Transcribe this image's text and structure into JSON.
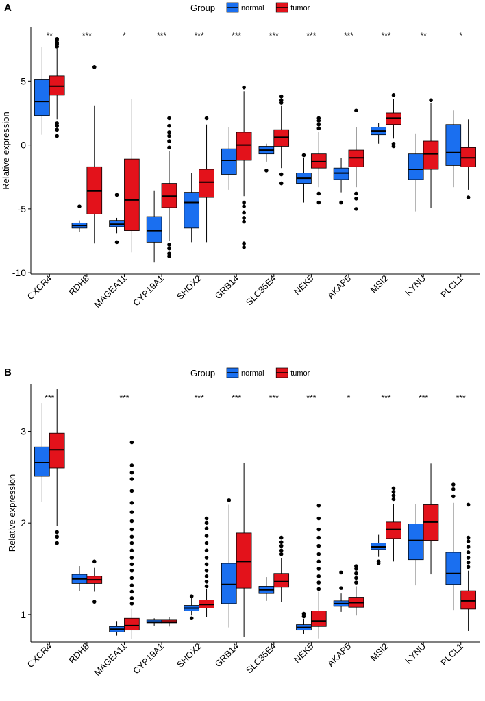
{
  "chart_data": [
    {
      "type": "boxplot",
      "panel_label": "A",
      "legend": {
        "title": "Group",
        "entries": [
          {
            "name": "normal",
            "color": "#1a6ff0"
          },
          {
            "name": "tumor",
            "color": "#e3121b"
          }
        ],
        "placement": "top"
      },
      "xlabel": "",
      "ylabel": "Relative  expression",
      "ylim": [
        -10.1,
        9.2
      ],
      "yticks": [
        -10,
        -5,
        0,
        5
      ],
      "ytick_labels": [
        "-10",
        "-5",
        "0",
        "5"
      ],
      "categories": [
        "CXCR4",
        "RDH8",
        "MAGEA11",
        "CYP19A1",
        "SHOX2",
        "GRB14",
        "SLC35E4",
        "NEK5",
        "AKAP5",
        "MSI2",
        "KYNU",
        "PLCL1"
      ],
      "significance": [
        "**",
        "***",
        "*",
        "***",
        "***",
        "***",
        "***",
        "***",
        "***",
        "***",
        "**",
        "*"
      ],
      "series": [
        {
          "name": "normal",
          "boxes": [
            {
              "q1": 2.3,
              "median": 3.4,
              "q3": 5.1,
              "lo": 0.8,
              "hi": 7.7,
              "outliers": []
            },
            {
              "q1": -6.5,
              "median": -6.3,
              "q3": -6.1,
              "lo": -6.8,
              "hi": -5.9,
              "outliers": [
                -4.8
              ]
            },
            {
              "q1": -6.4,
              "median": -6.2,
              "q3": -5.9,
              "lo": -6.9,
              "hi": -5.7,
              "outliers": [
                -3.9,
                -7.6
              ]
            },
            {
              "q1": -7.6,
              "median": -6.7,
              "q3": -5.6,
              "lo": -9.2,
              "hi": -3.6,
              "outliers": []
            },
            {
              "q1": -6.5,
              "median": -4.5,
              "q3": -3.7,
              "lo": -7.6,
              "hi": -2.2,
              "outliers": []
            },
            {
              "q1": -2.3,
              "median": -1.2,
              "q3": -0.3,
              "lo": -3.5,
              "hi": 1.4,
              "outliers": []
            },
            {
              "q1": -0.7,
              "median": -0.4,
              "q3": -0.1,
              "lo": -1.3,
              "hi": 0.1,
              "outliers": [
                -2.0
              ]
            },
            {
              "q1": -3.0,
              "median": -2.6,
              "q3": -2.2,
              "lo": -4.5,
              "hi": -1.0,
              "outliers": [
                -0.8
              ]
            },
            {
              "q1": -2.7,
              "median": -2.2,
              "q3": -1.8,
              "lo": -3.7,
              "hi": -1.0,
              "outliers": [
                -4.5
              ]
            },
            {
              "q1": 0.8,
              "median": 1.1,
              "q3": 1.4,
              "lo": 0.1,
              "hi": 1.7,
              "outliers": []
            },
            {
              "q1": -2.7,
              "median": -1.9,
              "q3": -0.7,
              "lo": -5.2,
              "hi": 0.9,
              "outliers": []
            },
            {
              "q1": -1.6,
              "median": -0.6,
              "q3": 1.6,
              "lo": -3.3,
              "hi": 2.7,
              "outliers": []
            }
          ]
        },
        {
          "name": "tumor",
          "boxes": [
            {
              "q1": 3.9,
              "median": 4.6,
              "q3": 5.4,
              "lo": 2.0,
              "hi": 7.5,
              "outliers": [
                7.7,
                7.9,
                8.0,
                8.2,
                8.3,
                1.7,
                1.5,
                1.2,
                0.7
              ]
            },
            {
              "q1": -5.4,
              "median": -3.6,
              "q3": -1.7,
              "lo": -7.7,
              "hi": 3.1,
              "outliers": [
                6.1
              ]
            },
            {
              "q1": -6.7,
              "median": -4.3,
              "q3": -1.1,
              "lo": -8.4,
              "hi": 3.6,
              "outliers": []
            },
            {
              "q1": -4.9,
              "median": -4.0,
              "q3": -3.0,
              "lo": -7.5,
              "hi": -0.5,
              "outliers": [
                2.1,
                1.5,
                1.0,
                0.7,
                0.3,
                -0.2,
                -7.8,
                -8.1,
                -8.5,
                -8.7
              ]
            },
            {
              "q1": -4.1,
              "median": -2.9,
              "q3": -1.9,
              "lo": -7.6,
              "hi": 1.6,
              "outliers": [
                2.1
              ]
            },
            {
              "q1": -1.2,
              "median": 0.0,
              "q3": 1.0,
              "lo": -4.0,
              "hi": 4.2,
              "outliers": [
                4.5,
                -4.5,
                -4.8,
                -5.3,
                -5.7,
                -6.0,
                -7.7,
                -8.0
              ]
            },
            {
              "q1": -0.1,
              "median": 0.6,
              "q3": 1.2,
              "lo": -1.8,
              "hi": 3.1,
              "outliers": [
                3.3,
                3.5,
                3.8,
                -2.3,
                -3.0
              ]
            },
            {
              "q1": -1.8,
              "median": -1.3,
              "q3": -0.7,
              "lo": -3.3,
              "hi": 1.0,
              "outliers": [
                1.3,
                1.6,
                1.9,
                2.1,
                -3.8,
                -4.5
              ]
            },
            {
              "q1": -1.7,
              "median": -1.0,
              "q3": -0.4,
              "lo": -3.3,
              "hi": 1.4,
              "outliers": [
                2.7,
                -3.8,
                -4.2,
                -5.0
              ]
            },
            {
              "q1": 1.6,
              "median": 2.1,
              "q3": 2.5,
              "lo": 0.5,
              "hi": 3.6,
              "outliers": [
                3.9,
                0.1,
                -0.1
              ]
            },
            {
              "q1": -1.9,
              "median": -0.7,
              "q3": 0.3,
              "lo": -4.9,
              "hi": 3.3,
              "outliers": [
                3.5
              ]
            },
            {
              "q1": -1.7,
              "median": -1.0,
              "q3": -0.2,
              "lo": -3.5,
              "hi": 2.0,
              "outliers": [
                -4.1
              ]
            }
          ]
        }
      ]
    },
    {
      "type": "boxplot",
      "panel_label": "B",
      "legend": {
        "title": "Group",
        "entries": [
          {
            "name": "normal",
            "color": "#1a6ff0"
          },
          {
            "name": "tumor",
            "color": "#e3121b"
          }
        ],
        "placement": "top"
      },
      "xlabel": "",
      "ylabel": "Relative expression",
      "ylim": [
        0.7,
        3.52
      ],
      "yticks": [
        1,
        2,
        3
      ],
      "ytick_labels": [
        "1",
        "2",
        "3"
      ],
      "categories": [
        "CXCR4",
        "RDH8",
        "MAGEA11",
        "CYP19A1",
        "SHOX2",
        "GRB14",
        "SLC35E4",
        "NEK5",
        "AKAP5",
        "MSI2",
        "KYNU",
        "PLCL1"
      ],
      "significance": [
        "***",
        "",
        "***",
        "",
        "***",
        "***",
        "***",
        "***",
        "*",
        "***",
        "***",
        "***"
      ],
      "series": [
        {
          "name": "normal",
          "boxes": [
            {
              "q1": 2.51,
              "median": 2.66,
              "q3": 2.83,
              "lo": 2.23,
              "hi": 3.31,
              "outliers": []
            },
            {
              "q1": 1.34,
              "median": 1.39,
              "q3": 1.44,
              "lo": 1.26,
              "hi": 1.53,
              "outliers": []
            },
            {
              "q1": 0.81,
              "median": 0.84,
              "q3": 0.87,
              "lo": 0.77,
              "hi": 0.93,
              "outliers": []
            },
            {
              "q1": 0.91,
              "median": 0.92,
              "q3": 0.94,
              "lo": 0.88,
              "hi": 0.96,
              "outliers": []
            },
            {
              "q1": 1.04,
              "median": 1.07,
              "q3": 1.1,
              "lo": 0.99,
              "hi": 1.18,
              "outliers": [
                0.96,
                1.2
              ]
            },
            {
              "q1": 1.12,
              "median": 1.33,
              "q3": 1.56,
              "lo": 0.86,
              "hi": 2.2,
              "outliers": [
                2.25
              ]
            },
            {
              "q1": 1.23,
              "median": 1.27,
              "q3": 1.31,
              "lo": 1.15,
              "hi": 1.41,
              "outliers": []
            },
            {
              "q1": 0.83,
              "median": 0.86,
              "q3": 0.89,
              "lo": 0.79,
              "hi": 0.95,
              "outliers": [
                0.98,
                1.01
              ]
            },
            {
              "q1": 1.09,
              "median": 1.12,
              "q3": 1.15,
              "lo": 1.03,
              "hi": 1.23,
              "outliers": [
                1.29,
                1.46
              ]
            },
            {
              "q1": 1.71,
              "median": 1.74,
              "q3": 1.78,
              "lo": 1.63,
              "hi": 1.87,
              "outliers": [
                1.56,
                1.58
              ]
            },
            {
              "q1": 1.6,
              "median": 1.81,
              "q3": 1.99,
              "lo": 1.32,
              "hi": 2.21,
              "outliers": []
            },
            {
              "q1": 1.33,
              "median": 1.45,
              "q3": 1.68,
              "lo": 1.05,
              "hi": 2.22,
              "outliers": [
                2.29,
                2.37,
                2.42
              ]
            }
          ]
        },
        {
          "name": "tumor",
          "boxes": [
            {
              "q1": 2.6,
              "median": 2.8,
              "q3": 2.98,
              "lo": 1.97,
              "hi": 3.46,
              "outliers": [
                1.78,
                1.85,
                1.9
              ]
            },
            {
              "q1": 1.34,
              "median": 1.38,
              "q3": 1.42,
              "lo": 1.25,
              "hi": 1.51,
              "outliers": [
                1.14,
                1.58
              ]
            },
            {
              "q1": 0.83,
              "median": 0.88,
              "q3": 0.96,
              "lo": 0.73,
              "hi": 1.06,
              "outliers": [
                1.12,
                1.18,
                1.25,
                1.32,
                1.4,
                1.48,
                1.55,
                1.62,
                1.7,
                1.78,
                1.85,
                1.93,
                2.02,
                2.12,
                2.22,
                2.35,
                2.48,
                2.55,
                2.63,
                2.88
              ]
            },
            {
              "q1": 0.91,
              "median": 0.92,
              "q3": 0.94,
              "lo": 0.87,
              "hi": 0.97,
              "outliers": []
            },
            {
              "q1": 1.07,
              "median": 1.11,
              "q3": 1.16,
              "lo": 0.97,
              "hi": 1.28,
              "outliers": [
                1.31,
                1.36,
                1.42,
                1.48,
                1.55,
                1.62,
                1.7,
                1.78,
                1.86,
                1.94,
                2.0,
                2.05
              ]
            },
            {
              "q1": 1.29,
              "median": 1.58,
              "q3": 1.89,
              "lo": 0.76,
              "hi": 2.66,
              "outliers": []
            },
            {
              "q1": 1.3,
              "median": 1.36,
              "q3": 1.45,
              "lo": 1.14,
              "hi": 1.62,
              "outliers": [
                1.66,
                1.7,
                1.75,
                1.79,
                1.84
              ]
            },
            {
              "q1": 0.87,
              "median": 0.93,
              "q3": 1.04,
              "lo": 0.74,
              "hi": 1.25,
              "outliers": [
                1.28,
                1.35,
                1.42,
                1.5,
                1.58,
                1.66,
                1.75,
                1.84,
                1.93,
                2.05,
                2.19
              ]
            },
            {
              "q1": 1.08,
              "median": 1.13,
              "q3": 1.19,
              "lo": 0.99,
              "hi": 1.31,
              "outliers": [
                1.35,
                1.4,
                1.45,
                1.5,
                1.53
              ]
            },
            {
              "q1": 1.83,
              "median": 1.93,
              "q3": 2.01,
              "lo": 1.58,
              "hi": 2.21,
              "outliers": [
                2.26,
                2.3,
                2.34,
                2.38
              ]
            },
            {
              "q1": 1.81,
              "median": 2.01,
              "q3": 2.2,
              "lo": 1.44,
              "hi": 2.65,
              "outliers": []
            },
            {
              "q1": 1.06,
              "median": 1.15,
              "q3": 1.26,
              "lo": 0.82,
              "hi": 1.48,
              "outliers": [
                1.52,
                1.57,
                1.62,
                1.68,
                1.74,
                1.8,
                1.84,
                2.2
              ]
            }
          ]
        }
      ]
    }
  ]
}
